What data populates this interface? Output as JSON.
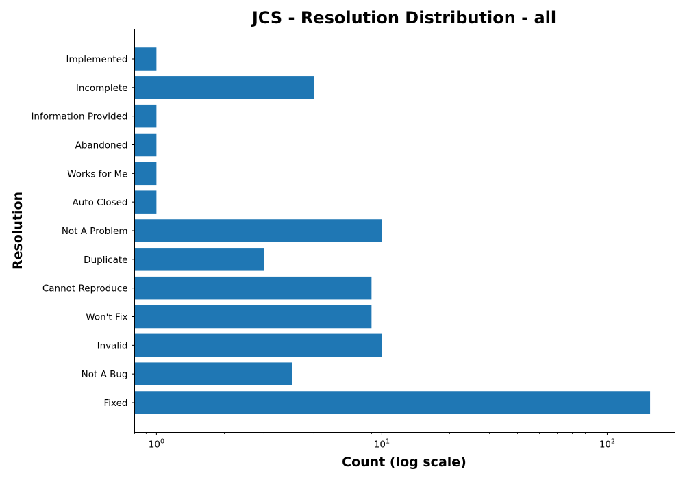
{
  "chart_data": {
    "type": "bar",
    "orientation": "horizontal",
    "title": "JCS - Resolution Distribution - all",
    "xlabel": "Count (log scale)",
    "ylabel": "Resolution",
    "xscale": "log",
    "xlim": [
      0.8,
      200
    ],
    "x_ticks": [
      {
        "base": "10",
        "exp": "0",
        "value": 1
      },
      {
        "base": "10",
        "exp": "1",
        "value": 10
      },
      {
        "base": "10",
        "exp": "2",
        "value": 100
      }
    ],
    "categories": [
      "Implemented",
      "Incomplete",
      "Information Provided",
      "Abandoned",
      "Works for Me",
      "Auto Closed",
      "Not A Problem",
      "Duplicate",
      "Cannot Reproduce",
      "Won't Fix",
      "Invalid",
      "Not A Bug",
      "Fixed"
    ],
    "values": [
      1,
      5,
      1,
      1,
      1,
      1,
      10,
      3,
      9,
      9,
      10,
      4,
      155
    ],
    "bar_color": "#1f77b4",
    "grid": false,
    "legend": "none"
  }
}
